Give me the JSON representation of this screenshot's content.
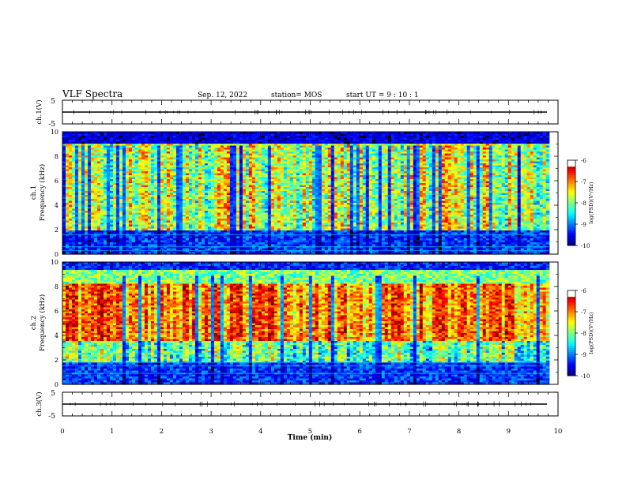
{
  "header": {
    "title": "VLF Spectra",
    "date": "Sep. 12, 2022",
    "station": "station= MOS",
    "start": "start  UT  =   9  : 10 : 1"
  },
  "chart_data": [
    {
      "type": "line",
      "name": "ch1-waveform",
      "ylabel": "ch.1(V)",
      "ylim": [
        -5,
        5
      ],
      "yticks": [
        "5",
        "-5"
      ],
      "baseline": 0,
      "xlim": [
        0,
        10
      ]
    },
    {
      "type": "heatmap",
      "name": "ch1-spectrogram",
      "ylabel_top": "ch.1",
      "ylabel": "Frequency (kHz)",
      "ylim": [
        0,
        10
      ],
      "yticks": [
        "0",
        "2",
        "4",
        "6",
        "8",
        "10"
      ],
      "xlim": [
        0,
        9.82
      ],
      "mode": "ch1",
      "colorbar": {
        "label": "log(PSD)(V²/Hz)",
        "ticks": [
          "-6",
          "-7",
          "-8",
          "-9",
          "-10"
        ],
        "range": [
          -10,
          -6
        ]
      }
    },
    {
      "type": "heatmap",
      "name": "ch2-spectrogram",
      "ylabel_top": "ch.2",
      "ylabel": "Frequency (kHz)",
      "ylim": [
        0,
        10
      ],
      "yticks": [
        "0",
        "2",
        "4",
        "6",
        "8",
        "10"
      ],
      "xlim": [
        0,
        9.82
      ],
      "mode": "ch2",
      "colorbar": {
        "label": "log(PSD)(V²/Hz)",
        "ticks": [
          "-6",
          "-7",
          "-8",
          "-9",
          "-10"
        ],
        "range": [
          -10,
          -6
        ]
      }
    },
    {
      "type": "line",
      "name": "ch3-waveform",
      "ylabel": "ch.3(V)",
      "ylim": [
        -5,
        5
      ],
      "yticks": [
        "5",
        "-5"
      ],
      "baseline": 0,
      "xlim": [
        0,
        10
      ]
    }
  ],
  "xaxis": {
    "label": "Time  (min)",
    "ticks": [
      "0",
      "1",
      "2",
      "3",
      "4",
      "5",
      "6",
      "7",
      "8",
      "9",
      "10"
    ],
    "range": [
      0,
      10
    ]
  }
}
